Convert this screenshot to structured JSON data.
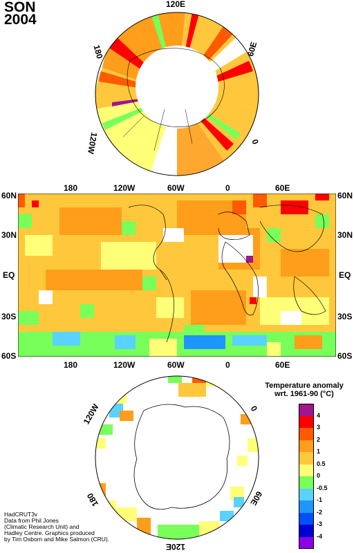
{
  "header": {
    "season": "SON",
    "year": "2004"
  },
  "north_polar_map": {
    "labels": {
      "top": "120E",
      "upper_left": "180",
      "upper_right": "60E",
      "lower_left": "120W",
      "lower_right": "0"
    }
  },
  "global_map": {
    "lon_labels": [
      "180",
      "120W",
      "60W",
      "0",
      "60E"
    ],
    "lat_labels": [
      "60N",
      "30N",
      "EQ",
      "30S",
      "60S"
    ]
  },
  "south_polar_map": {
    "labels": {
      "upper_left": "120W",
      "upper_right": "0",
      "lower_left": "180",
      "lower_right": "60E",
      "bottom": "120E"
    }
  },
  "legend": {
    "title_line1": "Temperature anomaly",
    "title_line2": "wrt. 1961-90  (°C)",
    "levels": [
      "4",
      "3",
      "2",
      "1",
      "0.5",
      "0",
      "-0.5",
      "-1",
      "-2",
      "-3",
      "-4"
    ],
    "colors": [
      "#a0168c",
      "#ff0000",
      "#ff5a00",
      "#ff9e1a",
      "#ffc83c",
      "#ffff78",
      "#78ff5a",
      "#5ad2ff",
      "#1e96ff",
      "#0050ff",
      "#0000d2",
      "#8c00e6"
    ]
  },
  "credits": {
    "line1": "HadCRUT3v",
    "line2": "Data from Phil Jones",
    "line3": "(Climatic Research Unit) and",
    "line4": "Hadley Centre.  Graphics produced",
    "line5": "by Tim Osborn and Mike Salmon (CRU)."
  }
}
